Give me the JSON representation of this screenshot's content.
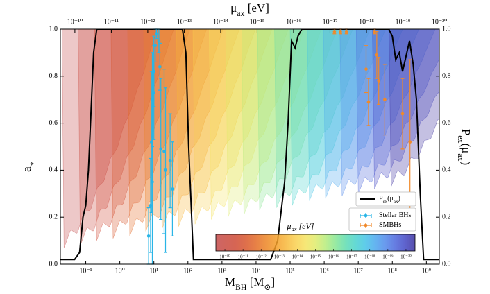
{
  "chart_data": {
    "type": "line",
    "xlabel": [
      {
        "text": "M"
      },
      {
        "text": "BH",
        "sub": true
      },
      {
        "text": " [M"
      },
      {
        "text": "⊙",
        "sub": true
      },
      {
        "text": "]"
      }
    ],
    "x2label": [
      {
        "text": "μ"
      },
      {
        "text": "ax",
        "sub": true
      },
      {
        "text": " [eV]"
      }
    ],
    "ylabel": [
      {
        "text": "a"
      },
      {
        "text": "∗",
        "sub": true
      }
    ],
    "y2label": [
      {
        "text": "P"
      },
      {
        "text": "ex",
        "sub": true
      },
      {
        "text": "(μ"
      },
      {
        "text": "ax",
        "sub": true
      },
      {
        "text": ")"
      }
    ],
    "log_x": true,
    "xlim": [
      0.018,
      2400000000
    ],
    "xticks": [
      {
        "value": 0.1,
        "label": "10⁻¹"
      },
      {
        "value": 1,
        "label": "10⁰"
      },
      {
        "value": 10,
        "label": "10¹"
      },
      {
        "value": 100,
        "label": "10²"
      },
      {
        "value": 1000,
        "label": "10³"
      },
      {
        "value": 10000,
        "label": "10⁴"
      },
      {
        "value": 100000,
        "label": "10⁵"
      },
      {
        "value": 1000000,
        "label": "10⁶"
      },
      {
        "value": 10000000,
        "label": "10⁷"
      },
      {
        "value": 100000000,
        "label": "10⁸"
      },
      {
        "value": 1000000000,
        "label": "10⁹"
      }
    ],
    "x2lim": [
      2.5e-10,
      1e-20
    ],
    "x2ticks": [
      {
        "value": 1e-10,
        "label": "10⁻¹⁰"
      },
      {
        "value": 1e-11,
        "label": "10⁻¹¹"
      },
      {
        "value": 1e-12,
        "label": "10⁻¹²"
      },
      {
        "value": 1e-13,
        "label": "10⁻¹³"
      },
      {
        "value": 1e-14,
        "label": "10⁻¹⁴"
      },
      {
        "value": 1e-15,
        "label": "10⁻¹⁵"
      },
      {
        "value": 1e-16,
        "label": "10⁻¹⁶"
      },
      {
        "value": 1e-17,
        "label": "10⁻¹⁷"
      },
      {
        "value": 1e-18,
        "label": "10⁻¹⁸"
      },
      {
        "value": 1e-19,
        "label": "10⁻¹⁹"
      },
      {
        "value": 1e-20,
        "label": "10⁻²⁰"
      }
    ],
    "ylim": [
      0,
      1
    ],
    "yticks": [
      {
        "value": 0,
        "label": "0.0"
      },
      0.2,
      0.4,
      0.6,
      0.8,
      {
        "value": 1,
        "label": "1.0"
      }
    ],
    "y2lim": [
      0,
      1
    ],
    "y2ticks": [
      {
        "value": 0,
        "label": "0.0"
      },
      0.2,
      0.4,
      0.6,
      0.8,
      {
        "value": 1,
        "label": "1.0"
      }
    ],
    "grid": false,
    "regions": [
      {
        "color": "#c44a4a",
        "M_min": 0.02,
        "M_max": 12.6,
        "a_min": 0.07
      },
      {
        "color": "#c94a3f",
        "M_min": 0.06,
        "M_max": 38,
        "a_min": 0.08
      },
      {
        "color": "#cf4a35",
        "M_min": 0.18,
        "M_max": 113,
        "a_min": 0.1
      },
      {
        "color": "#d8562c",
        "M_min": 0.55,
        "M_max": 350,
        "a_min": 0.11
      },
      {
        "color": "#e36a26",
        "M_min": 1.7,
        "M_max": 1070,
        "a_min": 0.12
      },
      {
        "color": "#ec8424",
        "M_min": 5,
        "M_max": 3200,
        "a_min": 0.14
      },
      {
        "color": "#f39c27",
        "M_min": 15,
        "M_max": 9500,
        "a_min": 0.15
      },
      {
        "color": "#f7b638",
        "M_min": 46,
        "M_max": 29000,
        "a_min": 0.16
      },
      {
        "color": "#f9cf4e",
        "M_min": 140,
        "M_max": 88000,
        "a_min": 0.17
      },
      {
        "color": "#f5e35f",
        "M_min": 420,
        "M_max": 260000,
        "a_min": 0.19
      },
      {
        "color": "#dfeb6a",
        "M_min": 1300,
        "M_max": 820000,
        "a_min": 0.2
      },
      {
        "color": "#b6ec7a",
        "M_min": 3800,
        "M_max": 2400000,
        "a_min": 0.21
      },
      {
        "color": "#86e692",
        "M_min": 11000,
        "M_max": 6900000,
        "a_min": 0.23
      },
      {
        "color": "#5fdcae",
        "M_min": 35000,
        "M_max": 22000000,
        "a_min": 0.24
      },
      {
        "color": "#49d3cc",
        "M_min": 100000,
        "M_max": 63000000,
        "a_min": 0.25
      },
      {
        "color": "#43c3e6",
        "M_min": 320000,
        "M_max": 200000000,
        "a_min": 0.27
      },
      {
        "color": "#49a7ee",
        "M_min": 950000,
        "M_max": 600000000,
        "a_min": 0.28
      },
      {
        "color": "#4f88ea",
        "M_min": 2900000,
        "M_max": 1800000000,
        "a_min": 0.29
      },
      {
        "color": "#4b66dc",
        "M_min": 8700000,
        "M_max": 5500000000,
        "a_min": 0.3
      },
      {
        "color": "#4247c4",
        "M_min": 26000000,
        "M_max": 16000000000,
        "a_min": 0.32
      },
      {
        "color": "#3a2f9e",
        "M_min": 80000000,
        "M_max": 50000000000,
        "a_min": 0.33
      }
    ],
    "series": [
      {
        "type": "line",
        "axis": "y2",
        "color": "#000000",
        "name": [
          {
            "text": "P"
          },
          {
            "text": "ex",
            "sub": true
          },
          {
            "text": "(μ"
          },
          {
            "text": "ax",
            "sub": true
          },
          {
            "text": ")"
          }
        ],
        "x": [
          0.018,
          0.047,
          0.066,
          0.083,
          0.1,
          0.12,
          0.17,
          0.21,
          69,
          87,
          105,
          145,
          27000,
          43000,
          69000,
          87000,
          110000,
          140000,
          170000,
          220000,
          79000000,
          100000000,
          126000000,
          160000000,
          200000000,
          320000000,
          410000000,
          510000000,
          660000000,
          830000000,
          2400000000
        ],
        "values": [
          0.02,
          0.02,
          0.05,
          0.2,
          0.25,
          0.4,
          0.9,
          1.0,
          1.0,
          0.9,
          0.5,
          0.02,
          0.02,
          0.1,
          0.35,
          0.6,
          0.95,
          0.92,
          0.97,
          1.0,
          1.0,
          0.97,
          0.87,
          0.9,
          0.82,
          0.95,
          0.85,
          0.7,
          0.3,
          0.02,
          0.02
        ]
      },
      {
        "type": "errorbar",
        "color": "#29b5e6",
        "name": [
          {
            "text": "Stellar BHs"
          }
        ],
        "x": [
          7,
          8,
          8.5,
          9,
          9,
          10,
          10,
          11,
          12,
          14,
          15,
          16,
          20,
          22,
          30,
          35
        ],
        "values": [
          0.12,
          0.25,
          0.52,
          0.35,
          0.7,
          0.73,
          0.82,
          0.93,
          0.98,
          0.95,
          0.84,
          0.49,
          0.48,
          0.4,
          0.44,
          0.32
        ],
        "errors": [
          0.12,
          0.2,
          0.3,
          0.35,
          0.2,
          0.2,
          0.15,
          0.07,
          0.02,
          0.05,
          0.1,
          0.3,
          0.35,
          0.35,
          0.2,
          0.2
        ]
      },
      {
        "type": "errorbar",
        "color": "#f0892a",
        "name": [
          {
            "text": "SMBHs"
          }
        ],
        "x": [
          2000000,
          3000000,
          4500000,
          17000000,
          20000000,
          30000000,
          35000000,
          40000000,
          60000000,
          200000000,
          330000000
        ],
        "values": [
          0.99,
          0.99,
          0.99,
          0.83,
          0.69,
          0.99,
          0.89,
          0.78,
          0.7,
          0.64,
          0.52
        ],
        "errors": [
          0.01,
          0.01,
          0.01,
          0.1,
          0.1,
          0.01,
          0.1,
          0.1,
          0.15,
          0.15,
          0.35
        ]
      }
    ],
    "colorbar": {
      "italic": true,
      "label": [
        {
          "text": "μ"
        },
        {
          "text": "ax",
          "sub": true
        },
        {
          "text": " [eV]"
        }
      ],
      "ticks": [
        "10⁻¹⁰",
        "10⁻¹¹",
        "10⁻¹²",
        "10⁻¹³",
        "10⁻¹⁴",
        "10⁻¹⁵",
        "10⁻¹⁶",
        "10⁻¹⁷",
        "10⁻¹⁸",
        "10⁻¹⁹",
        "10⁻²⁰"
      ]
    }
  }
}
